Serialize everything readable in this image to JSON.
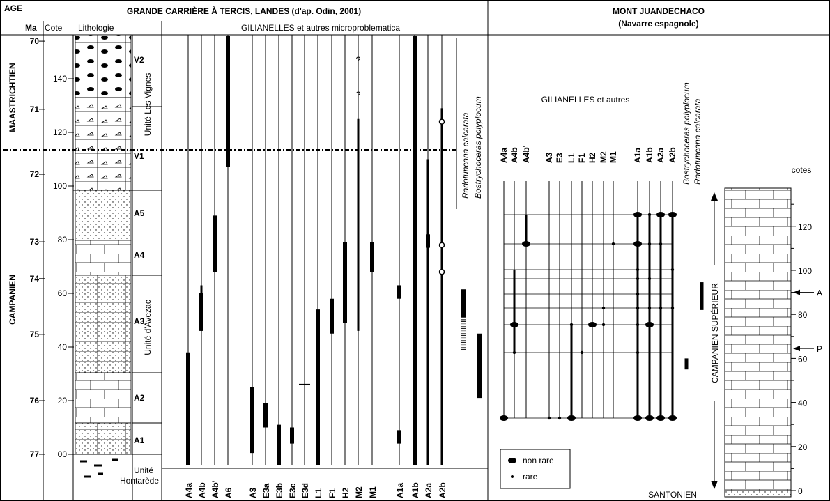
{
  "left": {
    "title": "GRANDE CARRIÈRE À TERCIS, LANDES (d'ap. Odin, 2001)",
    "age_header": "AGE",
    "ma_header": "Ma",
    "cote_header": "Cote",
    "litho_header": "Lithologie",
    "subtitle": "GILIANELLES et autres microproblematica",
    "stages": [
      "MAASTRICHTIEN",
      "CAMPANIEN"
    ],
    "ages": [
      {
        "ma": 70,
        "cote": 154
      },
      {
        "ma": 71,
        "cote": 128.6
      },
      {
        "ma": 72,
        "cote": 104.4
      },
      {
        "ma": 73,
        "cote": 79.2
      },
      {
        "ma": 74,
        "cote": 65.5
      },
      {
        "ma": 75,
        "cote": 44.7
      },
      {
        "ma": 76,
        "cote": 20
      },
      {
        "ma": 77,
        "cote": 0
      }
    ],
    "cote_ticks": [
      140,
      120,
      100,
      80,
      60,
      40,
      20,
      {
        "value": 0,
        "label": "00"
      }
    ],
    "boundary_cote": 113.5,
    "members": [
      "V2",
      "V1",
      "A5",
      "A4",
      "A3",
      "A2",
      "A1"
    ],
    "units": [
      "Unité Les Vignes",
      "Unité d'Avezac"
    ],
    "base_unit": [
      "Unité",
      "Hontarède"
    ],
    "taxa": [
      {
        "name": "A4a",
        "ranges": [
          [
            -4,
            38
          ]
        ]
      },
      {
        "name": "A4b",
        "span": [
          46,
          63
        ],
        "ranges": [
          [
            46,
            60
          ]
        ]
      },
      {
        "name": "A4b'",
        "ranges": [
          [
            68,
            89
          ]
        ]
      },
      {
        "name": "A6",
        "ranges": [
          [
            107,
            156
          ]
        ]
      },
      {
        "name": "A3",
        "ranges": [
          [
            0.5,
            25
          ]
        ]
      },
      {
        "name": "E3a",
        "ranges": [
          [
            10,
            19
          ]
        ]
      },
      {
        "name": "E3b",
        "ranges": [
          [
            -4,
            11
          ]
        ]
      },
      {
        "name": "E3c",
        "ranges": [
          [
            4,
            10
          ]
        ]
      },
      {
        "name": "E3d",
        "ranges": [],
        "dash": 26
      },
      {
        "name": "L1",
        "ranges": [
          [
            -4,
            54
          ]
        ]
      },
      {
        "name": "F1",
        "ranges": [
          [
            45,
            58
          ]
        ]
      },
      {
        "name": "H2",
        "ranges": [
          [
            49,
            79
          ]
        ]
      },
      {
        "name": "M2",
        "span": [
          46,
          125
        ],
        "ranges": []
      },
      {
        "name": "M1",
        "ranges": [
          [
            68,
            79
          ]
        ]
      },
      {
        "name": "A1a",
        "ranges": [
          [
            58,
            63
          ],
          [
            4,
            9
          ]
        ]
      },
      {
        "name": "A1b",
        "ranges": [
          [
            -4,
            156
          ]
        ]
      },
      {
        "name": "A2a",
        "span": [
          -4,
          110
        ],
        "ranges": [
          [
            77,
            82
          ]
        ]
      },
      {
        "name": "A2b",
        "span": [
          -4,
          129
        ],
        "ranges": [],
        "circles": [
          124,
          78,
          68
        ]
      }
    ],
    "queries": [
      {
        "label": "?",
        "cote": 147
      },
      {
        "label": "?",
        "cote": 134
      }
    ],
    "species": [
      {
        "name": "Radotuncana calcarata",
        "ranges": [
          [
            51,
            61.5
          ]
        ],
        "uncertain": [
          [
            39,
            51
          ]
        ]
      },
      {
        "name": "Bostrychoceras polyplocum",
        "ranges": [
          [
            21,
            45
          ]
        ]
      }
    ]
  },
  "right": {
    "title": "MONT JUANDECHACO",
    "subtitle": "(Navarre espagnole)",
    "group": "GILIANELLES et autres",
    "taxa": [
      "A4a",
      "A4b",
      "A4b'",
      "A3",
      "E3",
      "L1",
      "F1",
      "H2",
      "M2",
      "M1",
      "A1a",
      "A1b",
      "A2a",
      "A2b"
    ],
    "species": [
      {
        "name": "Bostrychoceras polyplocum",
        "ranges": [
          [
            55,
            60
          ]
        ]
      },
      {
        "name": "Radotuncana calcarata",
        "ranges": [
          [
            82,
            94.6
          ]
        ]
      }
    ],
    "cote_label": "cotes",
    "cote_ticks": [
      0,
      20,
      40,
      60,
      80,
      100,
      120
    ],
    "levels": [
      {
        "label": "A",
        "cote": 90
      },
      {
        "label": "P",
        "cote": 64.5
      }
    ],
    "stage": "CAMPANIEN SUPÉRIEUR",
    "base": "SANTONIEN",
    "legend": [
      "non rare",
      "rare"
    ]
  }
}
